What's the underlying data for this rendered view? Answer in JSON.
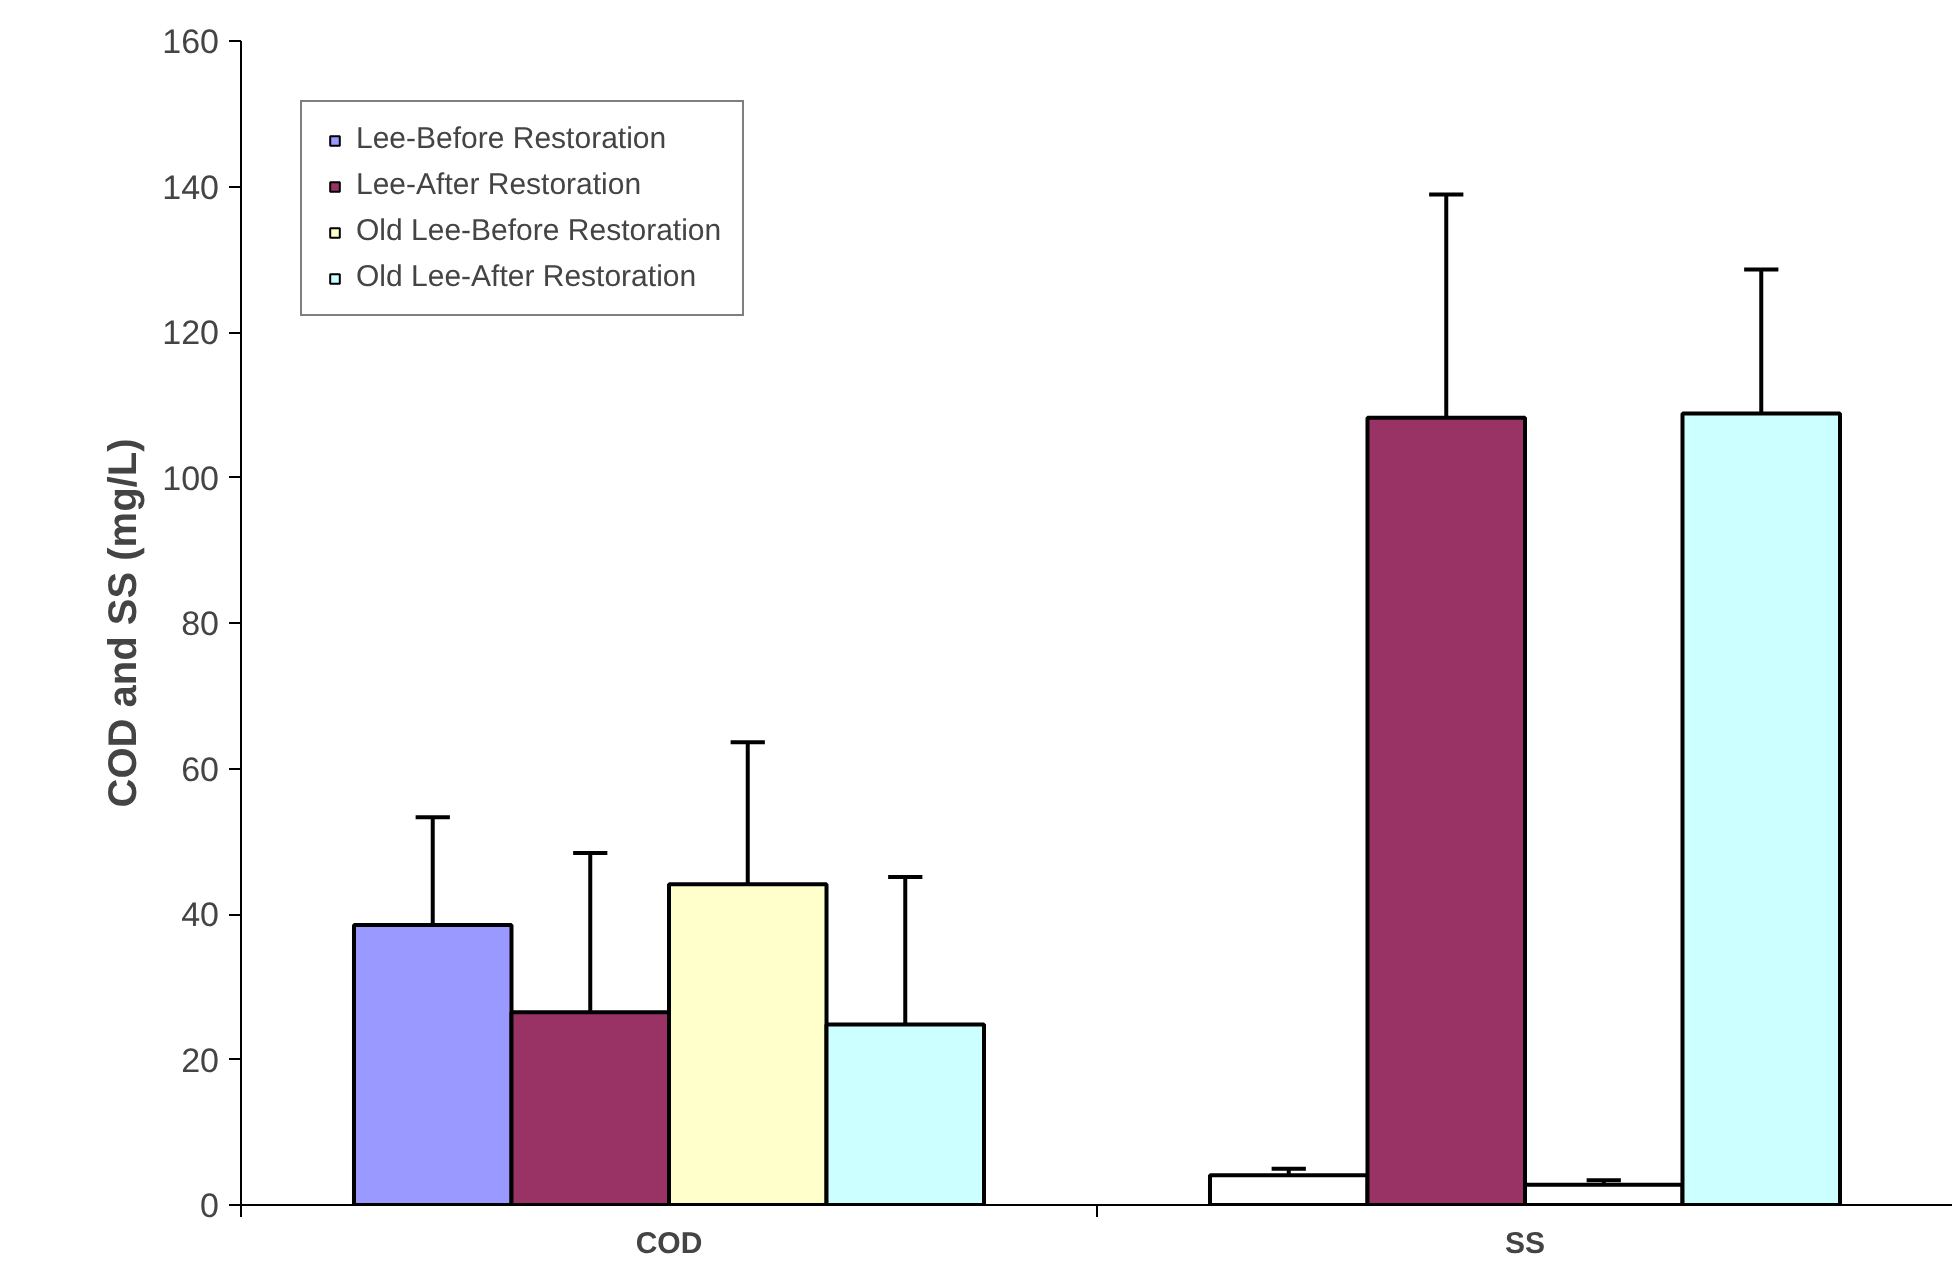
{
  "chart_data": {
    "type": "bar",
    "ylabel": "COD and SS (mg/L)",
    "categories": [
      "COD",
      "SS"
    ],
    "series": [
      {
        "name": "Lee-Before Restoration",
        "color": "#9999ff",
        "colors": [
          "#9999ff",
          "#ffffff"
        ],
        "values": [
          38.5,
          4.1
        ],
        "errors": [
          [
            38.5,
            53.3
          ],
          [
            4.1,
            5.0
          ]
        ]
      },
      {
        "name": "Lee-After Restoration",
        "color": "#993366",
        "values": [
          26.5,
          108.2
        ],
        "errors": [
          [
            26.5,
            48.4
          ],
          [
            108.2,
            138.9
          ]
        ]
      },
      {
        "name": "Old Lee-Before Restoration",
        "color": "#ffffcc",
        "colors": [
          "#ffffcc",
          "#ffffff"
        ],
        "values": [
          44.1,
          2.8
        ],
        "errors": [
          [
            44.1,
            63.6
          ],
          [
            2.8,
            3.4
          ]
        ]
      },
      {
        "name": "Old Lee-After Restoration",
        "color": "#ccffff",
        "values": [
          24.8,
          108.8
        ],
        "errors": [
          [
            24.8,
            45.1
          ],
          [
            108.8,
            128.6
          ]
        ]
      }
    ],
    "ylim": [
      0,
      160
    ],
    "yticks": [
      0,
      20,
      40,
      60,
      80,
      100,
      120,
      140,
      160
    ],
    "grid": false,
    "legend": "top left"
  }
}
